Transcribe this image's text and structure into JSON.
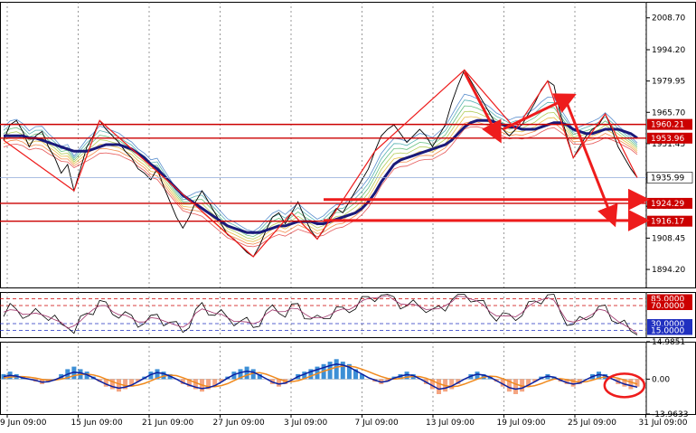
{
  "chart_data": {
    "type": "line",
    "colors": {
      "background": "#ffffff",
      "ma_main": "#1a1a7a",
      "price": "#000000",
      "resistance": "#cc0000",
      "current_line": "#8fa8d8",
      "arrow": "#ee1c1c",
      "hist_pos": "#3d8fd6",
      "hist_neg": "#f4a582",
      "macd_line": "#0a1fa0",
      "signal_line": "#f08a1e",
      "grid": "#555555"
    },
    "price_panel": {
      "ylim": [
        1886.0,
        2016.0
      ],
      "y_ticks": [
        "2008.70",
        "1994.20",
        "1979.95",
        "1965.70",
        "1951.45",
        "1935.99",
        "1922.95",
        "1908.45",
        "1894.20"
      ],
      "horizontal_levels": [
        {
          "value": 1960.21,
          "label": "1960.21"
        },
        {
          "value": 1953.96,
          "label": "1953.96"
        },
        {
          "value": 1924.29,
          "label": "1924.29"
        },
        {
          "value": 1916.17,
          "label": "1916.17"
        }
      ],
      "current_price": {
        "value": 1935.99,
        "label": "1935.99"
      },
      "closes": [
        1953,
        1960,
        1962,
        1957,
        1950,
        1955,
        1957,
        1950,
        1945,
        1938,
        1942,
        1930,
        1940,
        1950,
        1955,
        1962,
        1958,
        1955,
        1952,
        1948,
        1945,
        1940,
        1938,
        1935,
        1940,
        1932,
        1925,
        1918,
        1913,
        1918,
        1925,
        1930,
        1925,
        1920,
        1915,
        1910,
        1908,
        1905,
        1902,
        1900,
        1905,
        1912,
        1918,
        1920,
        1915,
        1920,
        1925,
        1918,
        1912,
        1908,
        1912,
        1918,
        1922,
        1920,
        1925,
        1930,
        1935,
        1940,
        1948,
        1955,
        1958,
        1960,
        1956,
        1952,
        1955,
        1958,
        1955,
        1950,
        1955,
        1960,
        1970,
        1978,
        1985,
        1980,
        1975,
        1970,
        1965,
        1960,
        1958,
        1955,
        1958,
        1960,
        1965,
        1970,
        1976,
        1980,
        1978,
        1965,
        1955,
        1945,
        1950,
        1955,
        1958,
        1960,
        1965,
        1958,
        1950,
        1945,
        1940,
        1936
      ],
      "ma_main": [
        1955,
        1955,
        1955,
        1955,
        1954,
        1954,
        1953,
        1952,
        1951,
        1950,
        1949,
        1948,
        1948,
        1948,
        1949,
        1950,
        1951,
        1951,
        1951,
        1950,
        1949,
        1947,
        1945,
        1942,
        1940,
        1937,
        1934,
        1931,
        1928,
        1926,
        1924,
        1922,
        1920,
        1918,
        1916,
        1914,
        1913,
        1912,
        1911,
        1911,
        1911,
        1912,
        1913,
        1914,
        1914,
        1915,
        1916,
        1916,
        1916,
        1915,
        1915,
        1916,
        1917,
        1918,
        1919,
        1920,
        1922,
        1925,
        1929,
        1934,
        1938,
        1942,
        1944,
        1945,
        1946,
        1947,
        1948,
        1949,
        1950,
        1951,
        1953,
        1956,
        1959,
        1961,
        1962,
        1962,
        1962,
        1961,
        1960,
        1959,
        1959,
        1958,
        1958,
        1958,
        1959,
        1960,
        1961,
        1961,
        1960,
        1958,
        1957,
        1956,
        1956,
        1957,
        1958,
        1958,
        1958,
        1957,
        1956,
        1954
      ]
    },
    "oscillator_panel": {
      "ylim": [
        0,
        100
      ],
      "levels": [
        {
          "value": 85,
          "label": "85.0000"
        },
        {
          "value": 70,
          "label": "70.0000"
        },
        {
          "value": 30,
          "label": "30.0000"
        },
        {
          "value": 15,
          "label": "15.0000"
        }
      ]
    },
    "macd_panel": {
      "ylim": [
        -13.9633,
        14.9851
      ],
      "y_ticks": [
        "14.9851",
        "0.00",
        "-13.9633"
      ],
      "histogram": [
        2,
        3,
        2,
        1,
        0,
        -1,
        -2,
        -1,
        0,
        2,
        4,
        5,
        4,
        3,
        1,
        -1,
        -3,
        -4,
        -5,
        -4,
        -3,
        -1,
        1,
        3,
        4,
        3,
        2,
        0,
        -2,
        -3,
        -4,
        -5,
        -4,
        -3,
        -1,
        1,
        3,
        4,
        5,
        4,
        2,
        0,
        -2,
        -3,
        -2,
        0,
        2,
        3,
        4,
        5,
        6,
        7,
        8,
        7,
        6,
        4,
        2,
        0,
        -1,
        -2,
        -1,
        1,
        2,
        3,
        2,
        0,
        -2,
        -4,
        -6,
        -5,
        -4,
        -2,
        0,
        2,
        3,
        2,
        1,
        -1,
        -3,
        -5,
        -6,
        -5,
        -3,
        -1,
        1,
        2,
        1,
        -1,
        -2,
        -3,
        -2,
        0,
        2,
        3,
        2,
        0,
        -2,
        -3,
        -4,
        -3
      ],
      "macd": [
        1,
        1.5,
        1.2,
        0.5,
        0,
        -0.5,
        -1.2,
        -1,
        -0.3,
        0.8,
        2,
        2.8,
        2.5,
        1.8,
        0.6,
        -0.8,
        -2,
        -3,
        -3.6,
        -3.2,
        -2.4,
        -1,
        0.4,
        1.8,
        2.6,
        2.2,
        1.2,
        0,
        -1.4,
        -2.4,
        -3.2,
        -3.8,
        -3.4,
        -2.6,
        -1.2,
        0.4,
        1.8,
        2.6,
        3.2,
        2.8,
        1.6,
        0.2,
        -1.2,
        -2,
        -1.6,
        -0.4,
        1,
        2,
        3,
        3.8,
        4.6,
        5.4,
        6,
        5.6,
        4.8,
        3.4,
        2,
        0.6,
        -0.4,
        -1.2,
        -0.8,
        0.4,
        1.2,
        1.8,
        1.4,
        0.2,
        -1.2,
        -2.6,
        -4,
        -3.6,
        -2.8,
        -1.4,
        0,
        1.2,
        2,
        1.6,
        0.8,
        -0.6,
        -2,
        -3.4,
        -4,
        -3.6,
        -2.4,
        -1,
        0.4,
        1.2,
        0.8,
        -0.4,
        -1.4,
        -2,
        -1.6,
        -0.2,
        1,
        1.8,
        1.4,
        0.2,
        -1,
        -2,
        -2.6,
        -3.2
      ],
      "signal": [
        0.5,
        0.8,
        1,
        1,
        0.8,
        0.4,
        -0.1,
        -0.4,
        -0.4,
        0,
        0.6,
        1.4,
        1.9,
        2,
        1.7,
        1,
        0,
        -1,
        -1.9,
        -2.6,
        -2.8,
        -2.4,
        -1.7,
        -0.7,
        0.4,
        1.2,
        1.6,
        1.4,
        0.6,
        -0.4,
        -1.4,
        -2.4,
        -3,
        -3,
        -2.6,
        -1.8,
        -0.6,
        0.6,
        1.6,
        2.4,
        2.6,
        2,
        1,
        0,
        -0.8,
        -1,
        -0.6,
        0.2,
        1.2,
        2.2,
        3.2,
        4,
        4.8,
        5.2,
        5.2,
        4.8,
        4,
        3,
        2,
        1,
        0.3,
        0,
        0.3,
        0.8,
        1.1,
        1,
        0.4,
        -0.6,
        -1.8,
        -2.6,
        -3,
        -2.8,
        -2,
        -1,
        0,
        0.8,
        1.2,
        1,
        0.2,
        -0.9,
        -2,
        -2.8,
        -3,
        -2.6,
        -1.8,
        -0.8,
        0,
        0.2,
        -0.2,
        -0.8,
        -1.2,
        -1,
        -0.4,
        0.4,
        0.9,
        0.9,
        0.4,
        -0.4,
        -1.2,
        -2
      ]
    },
    "x_tick_labels": [
      "9 Jun 09:00",
      "15 Jun 09:00",
      "21 Jun 09:00",
      "27 Jun 09:00",
      "3 Jul 09:00",
      "7 Jul 09:00",
      "13 Jul 09:00",
      "19 Jul 09:00",
      "25 Jul 09:00",
      "31 Jul 09:00"
    ]
  }
}
